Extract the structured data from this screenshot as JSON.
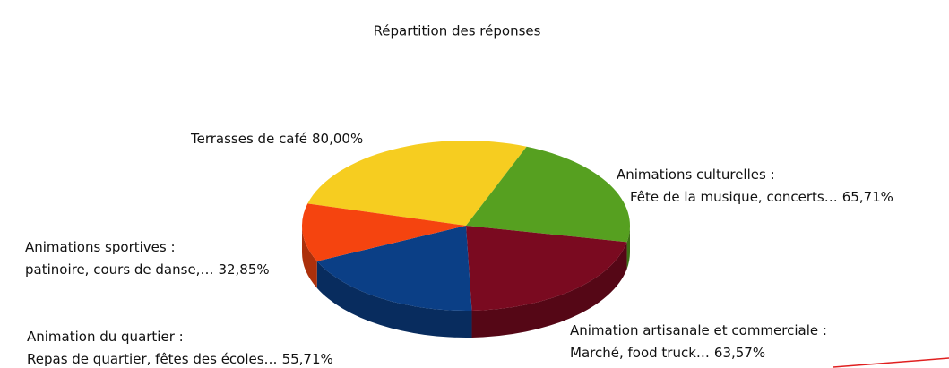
{
  "chart_data": {
    "type": "pie3d",
    "title": "Répartition des réponses",
    "categories": [
      [
        "Terrasses de café"
      ],
      [
        "Animations culturelles :",
        "Fête de la musique, concerts…"
      ],
      [
        "Animation artisanale et commerciale :",
        "Marché, food truck…"
      ],
      [
        "Animation du quartier :",
        "Repas de quartier, fêtes des écoles…"
      ],
      [
        "Animations sportives :",
        "patinoire, cours de danse,…"
      ]
    ],
    "values": [
      80.0,
      65.71,
      63.57,
      55.71,
      32.85
    ],
    "value_labels": [
      "80,00%",
      "65,71%",
      "63,57%",
      "55,71%",
      "32,85%"
    ],
    "colors": [
      "#f6cd20",
      "#56a020",
      "#7a0a20",
      "#0b3f86",
      "#f5440f"
    ]
  }
}
